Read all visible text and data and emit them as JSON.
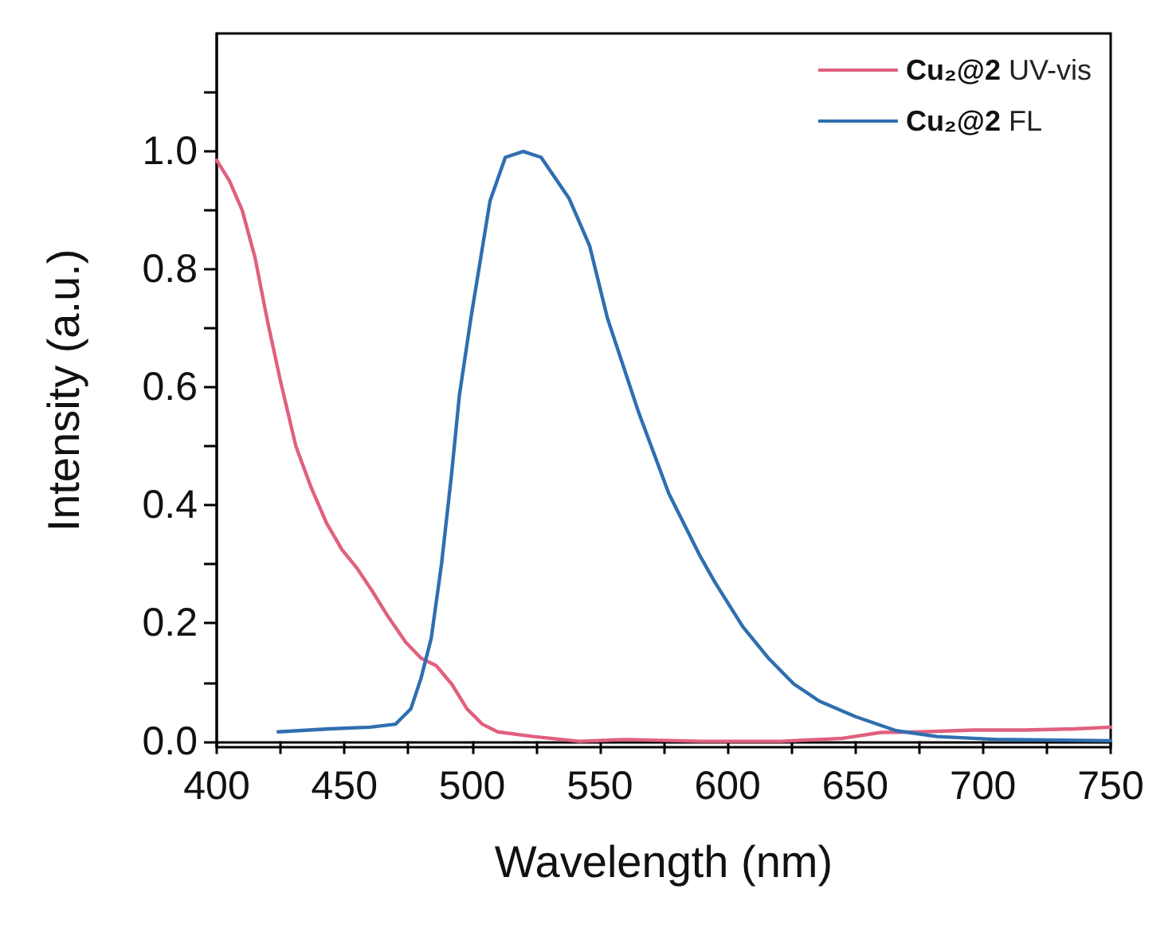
{
  "chart_data": {
    "type": "line",
    "xlabel": "Wavelength (nm)",
    "ylabel": "Intensity (a.u.)",
    "xlim": [
      400,
      750
    ],
    "ylim": [
      -0.01,
      1.2
    ],
    "xticks": [
      400,
      {
        "value": 425,
        "label": null
      },
      450,
      {
        "value": 475,
        "label": null
      },
      500,
      {
        "value": 525,
        "label": null
      },
      550,
      {
        "value": 575,
        "label": null
      },
      600,
      {
        "value": 625,
        "label": null
      },
      650,
      {
        "value": 675,
        "label": null
      },
      700,
      {
        "value": 725,
        "label": null
      },
      750
    ],
    "yticks": [
      {
        "value": 0,
        "label": "0.0"
      },
      {
        "value": 0.1,
        "label": null
      },
      {
        "value": 0.2,
        "label": "0.2"
      },
      {
        "value": 0.3,
        "label": null
      },
      {
        "value": 0.4,
        "label": "0.4"
      },
      {
        "value": 0.5,
        "label": null
      },
      {
        "value": 0.6,
        "label": "0.6"
      },
      {
        "value": 0.7,
        "label": null
      },
      {
        "value": 0.8,
        "label": "0.8"
      },
      {
        "value": 0.9,
        "label": null
      },
      {
        "value": 1.0,
        "label": "1.0"
      },
      {
        "value": 1.1,
        "label": null
      }
    ],
    "grid": false,
    "legend": "top right",
    "marker": "none",
    "line_style": "solid",
    "series": [
      {
        "name": "Cu₂@2 UV-vis",
        "color": "#e0607e",
        "x": [
          400,
          405,
          410,
          415,
          420,
          425,
          431,
          437,
          443,
          449,
          455,
          461,
          467,
          474,
          480,
          486,
          492,
          498,
          504,
          510,
          524,
          542,
          560,
          590,
          621,
          645,
          660,
          676,
          696,
          716,
          736,
          750
        ],
        "values": [
          0.985,
          0.95,
          0.9,
          0.82,
          0.71,
          0.61,
          0.5,
          0.43,
          0.37,
          0.325,
          0.293,
          0.254,
          0.212,
          0.168,
          0.141,
          0.128,
          0.097,
          0.055,
          0.029,
          0.016,
          0.008,
          0,
          0.003,
          0,
          0,
          0.005,
          0.015,
          0.016,
          0.019,
          0.019,
          0.021,
          0.024
        ]
      },
      {
        "name": "Cu₂@2 FL",
        "color": "#2f6fb0",
        "x": [
          424,
          444,
          460,
          470,
          476,
          480,
          484,
          488,
          492,
          495,
          499.5,
          507,
          513,
          520,
          527,
          538,
          546,
          553,
          565,
          577,
          589,
          595,
          606,
          616,
          626,
          636,
          650,
          666,
          682,
          706,
          750
        ],
        "values": [
          0.016,
          0.021,
          0.024,
          0.029,
          0.055,
          0.107,
          0.175,
          0.3,
          0.455,
          0.586,
          0.717,
          0.916,
          0.99,
          1.0,
          0.99,
          0.92,
          0.84,
          0.717,
          0.56,
          0.42,
          0.316,
          0.27,
          0.194,
          0.141,
          0.097,
          0.068,
          0.042,
          0.018,
          0.008,
          0.003,
          0.001
        ]
      }
    ]
  }
}
